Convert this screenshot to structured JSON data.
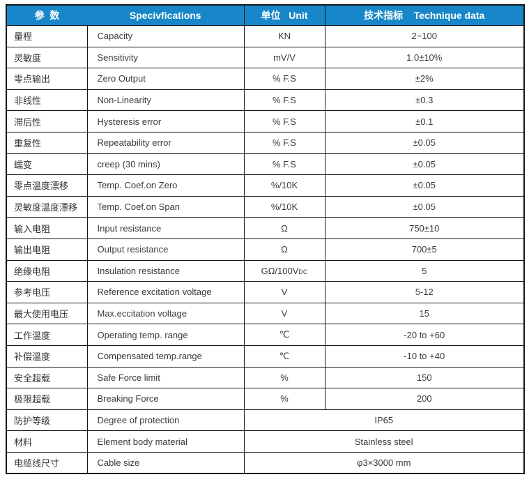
{
  "header": {
    "param": "参  数",
    "spec": "Specivfications",
    "unit": "单位   Unit",
    "data": "技术指标    Technique data"
  },
  "rows": [
    {
      "param": "量程",
      "spec": "Capacity",
      "unit": "KN",
      "value": "2~100"
    },
    {
      "param": "灵敏度",
      "spec": "Sensitivity",
      "unit": "mV/V",
      "value": "1.0±10%"
    },
    {
      "param": "零点输出",
      "spec": "Zero Output",
      "unit": "% F.S",
      "value": "±2%"
    },
    {
      "param": "非线性",
      "spec": "Non-Linearity",
      "unit": "% F.S",
      "value": "±0.3"
    },
    {
      "param": "滞后性",
      "spec": "Hysteresis error",
      "unit": "% F.S",
      "value": "±0.1"
    },
    {
      "param": "重复性",
      "spec": "Repeatability error",
      "unit": "% F.S",
      "value": "±0.05"
    },
    {
      "param": "蠕变",
      "spec": "creep (30 mins)",
      "unit": "% F.S",
      "value": "±0.05"
    },
    {
      "param": "零点温度漂移",
      "spec": "Temp. Coef.on Zero",
      "unit": "%/10K",
      "value": "±0.05"
    },
    {
      "param": "灵敏度温度漂移",
      "spec": "Temp. Coef.on Span",
      "unit": "%/10K",
      "value": "±0.05"
    },
    {
      "param": "输入电阻",
      "spec": "Input resistance",
      "unit": "Ω",
      "value": "750±10"
    },
    {
      "param": "输出电阻",
      "spec": "Output resistance",
      "unit": "Ω",
      "value": "700±5"
    },
    {
      "param": "绝缘电阻",
      "spec": "Insulation resistance",
      "unit": "GΩ/100V",
      "unit_sub": "DC",
      "value": "5"
    },
    {
      "param": "参考电压",
      "spec": "Reference excitation voltage",
      "unit": "V",
      "value": "5-12"
    },
    {
      "param": "最大使用电压",
      "spec": "Max.eccitation voltage",
      "unit": "V",
      "value": "15"
    },
    {
      "param": "工作温度",
      "spec": "Operating temp. range",
      "unit": "℃",
      "value": "-20 to +60"
    },
    {
      "param": "补偿温度",
      "spec": "Compensated temp.range",
      "unit": "℃",
      "value": "-10 to +40"
    },
    {
      "param": "安全超载",
      "spec": "Safe Force limit",
      "unit": "%",
      "value": "150"
    },
    {
      "param": "极限超载",
      "spec": "Breaking Force",
      "unit": "%",
      "value": "200"
    },
    {
      "param": "防护等级",
      "spec": "Degree of protection",
      "value": "IP65"
    },
    {
      "param": "材料",
      "spec": "Element body material",
      "value": "Stainless steel"
    },
    {
      "param": "电缆线尺寸",
      "spec": "Cable size",
      "value": "φ3×3000 mm"
    }
  ]
}
